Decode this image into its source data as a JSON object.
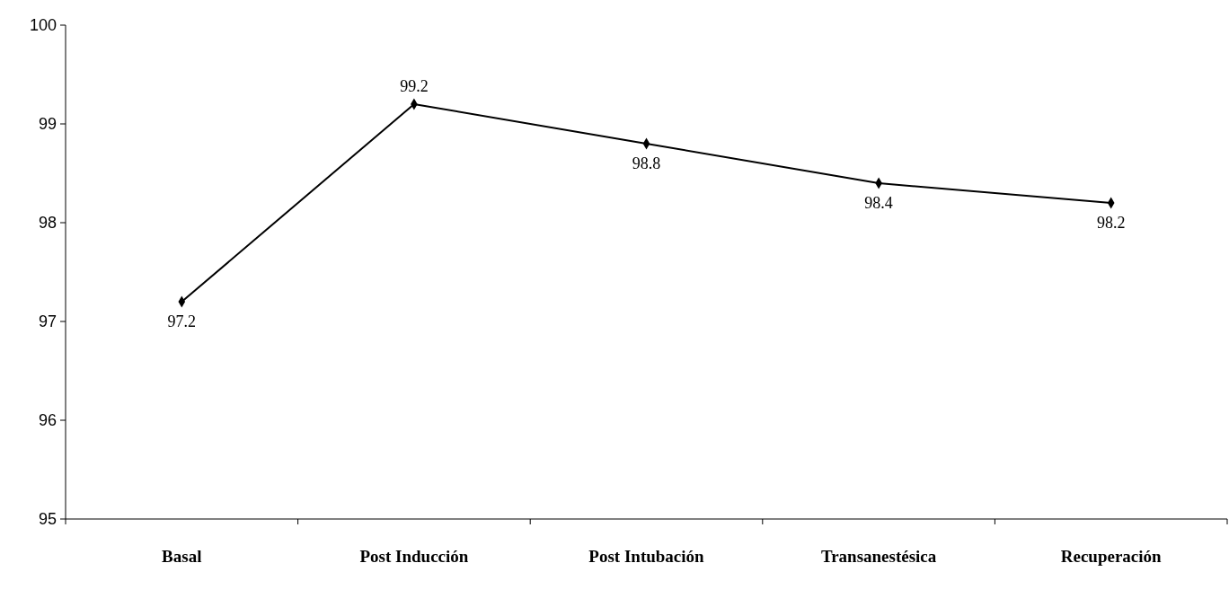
{
  "chart_data": {
    "type": "line",
    "categories": [
      "Basal",
      "Post Inducción",
      "Post Intubación",
      "Transanestésica",
      "Recuperación"
    ],
    "series": [
      {
        "color": "#000000",
        "values": [
          97.2,
          99.2,
          98.8,
          98.4,
          98.2
        ]
      }
    ],
    "ylim": [
      95,
      100
    ],
    "yticks": [
      95,
      96,
      97,
      98,
      99,
      100
    ],
    "data_labels": true,
    "marker": "diamond",
    "line_style": "solid",
    "grid": false
  }
}
